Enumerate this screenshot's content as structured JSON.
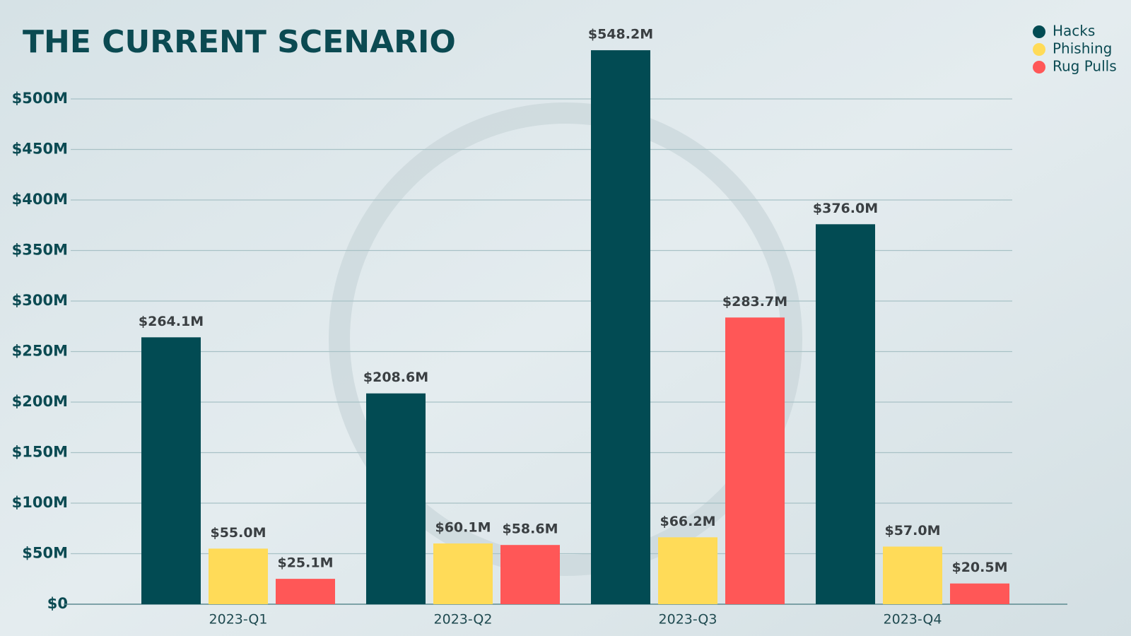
{
  "chart_data": {
    "type": "bar",
    "title": "THE CURRENT SCENARIO",
    "categories": [
      "2023-Q1",
      "2023-Q2",
      "2023-Q3",
      "2023-Q4"
    ],
    "series": [
      {
        "name": "Hacks",
        "color": "#024b53",
        "values": [
          264.1,
          208.6,
          548.2,
          376.0
        ],
        "value_labels": [
          "$264.1M",
          "$208.6M",
          "$548.2M",
          "$376.0M"
        ]
      },
      {
        "name": "Phishing",
        "color": "#ffdb58",
        "values": [
          55.0,
          60.1,
          66.2,
          57.0
        ],
        "value_labels": [
          "$55.0M",
          "$60.1M",
          "$66.2M",
          "$57.0M"
        ]
      },
      {
        "name": "Rug Pulls",
        "color": "#ff5757",
        "values": [
          25.1,
          58.6,
          283.7,
          20.5
        ],
        "value_labels": [
          "$25.1M",
          "$58.6M",
          "$283.7M",
          "$20.5M"
        ]
      }
    ],
    "ylim": [
      0,
      550
    ],
    "yticks": [
      {
        "value": 0,
        "label": "$0"
      },
      {
        "value": 50,
        "label": "$50M"
      },
      {
        "value": 100,
        "label": "$100M"
      },
      {
        "value": 150,
        "label": "$150M"
      },
      {
        "value": 200,
        "label": "$200M"
      },
      {
        "value": 250,
        "label": "$250M"
      },
      {
        "value": 300,
        "label": "$300M"
      },
      {
        "value": 350,
        "label": "$350M"
      },
      {
        "value": 400,
        "label": "$400M"
      },
      {
        "value": 450,
        "label": "$450M"
      },
      {
        "value": 500,
        "label": "$500M"
      }
    ],
    "grid": true,
    "legend": "top-right"
  }
}
